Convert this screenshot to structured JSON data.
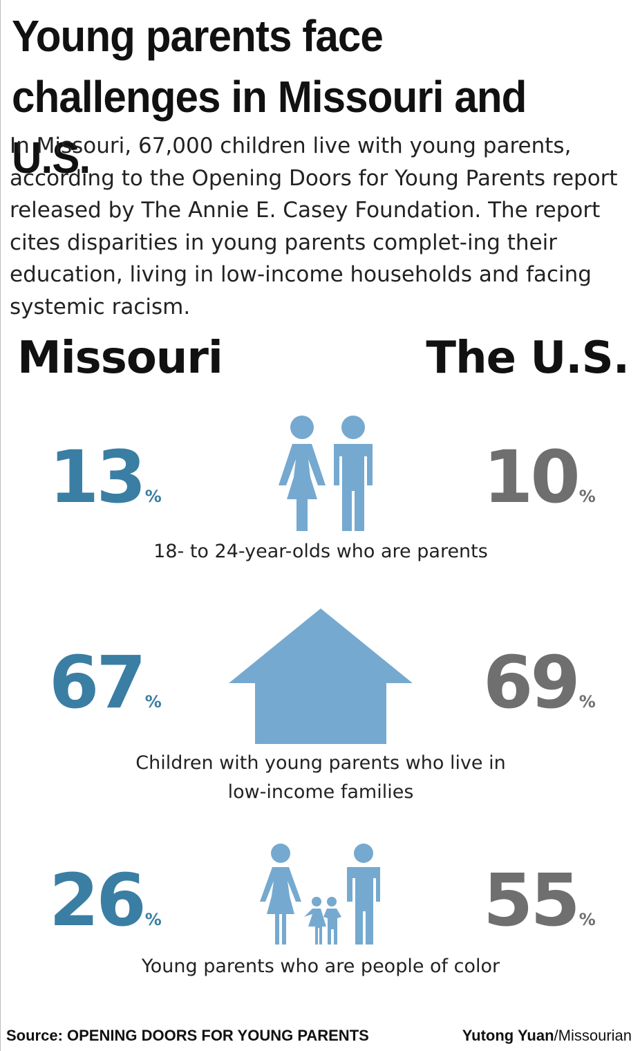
{
  "title": "Young parents face challenges in Missouri and U.S.",
  "intro": "In Missouri, 67,000 children live with young parents, according to the Opening Doors for Young Parents report released by The Annie E. Casey Foundation. The report cites disparities in young parents complet-ing their education, living in low-income households and facing systemic racism.",
  "columns": {
    "left": "Missouri",
    "right": "The U.S."
  },
  "stats": [
    {
      "caption": "18- to 24-year-olds who are parents",
      "missouri": "13",
      "us": "10",
      "unit": "%",
      "icon": "two-adults-icon"
    },
    {
      "caption": "Children with young parents who live in low-income families",
      "missouri": "67",
      "us": "69",
      "unit": "%",
      "icon": "house-icon"
    },
    {
      "caption": "Young parents who are people of color",
      "missouri": "26",
      "us": "55",
      "unit": "%",
      "icon": "family-icon"
    }
  ],
  "footer": {
    "source": "Source: OPENING DOORS FOR YOUNG PARENTS",
    "credit_name": "Yutong Yuan",
    "credit_org": "/Missourian"
  },
  "colors": {
    "missouri": "#3a7ea3",
    "us": "#6f6f6f",
    "icon": "#75a9d0"
  },
  "chart_data": {
    "type": "table",
    "title": "Young parents face challenges in Missouri and U.S.",
    "series": [
      {
        "name": "Missouri",
        "values": [
          13,
          67,
          26
        ]
      },
      {
        "name": "The U.S.",
        "values": [
          10,
          69,
          55
        ]
      }
    ],
    "categories": [
      "18- to 24-year-olds who are parents",
      "Children with young parents who live in low-income families",
      "Young parents who are people of color"
    ],
    "unit": "%"
  }
}
